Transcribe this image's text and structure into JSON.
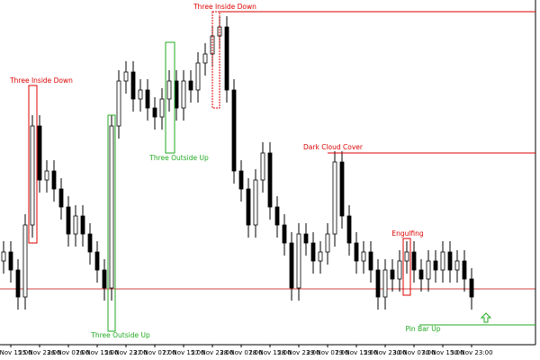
{
  "chart_data": {
    "type": "candlestick",
    "categories": [
      null,
      "25 Nov 15:00",
      null,
      null,
      null,
      "25 Nov 23:00",
      null,
      null,
      null,
      "26 Nov 07:00",
      null,
      null,
      null,
      "26 Nov 15:00",
      null,
      null,
      null,
      "26 Nov 23:00",
      null,
      null,
      null,
      "27 Nov 07:00",
      null,
      null,
      null,
      "27 Nov 15:00",
      null,
      null,
      null,
      "27 Nov 23:00",
      null,
      null,
      null,
      "28 Nov 07:00",
      null,
      null,
      null,
      "28 Nov 15:00",
      null,
      null,
      null,
      "28 Nov 23:00",
      null,
      null,
      null,
      "29 Nov 07:00",
      null,
      null,
      null,
      "29 Nov 15:00",
      null,
      null,
      null,
      "29 Nov 23:00",
      null,
      null,
      null,
      "30 Nov 07:00",
      null,
      null,
      null,
      "30 Nov 15:00",
      null,
      null,
      null,
      "30 Nov 23:00"
    ],
    "open": [
      110,
      120,
      100,
      70,
      150,
      260,
      200,
      210,
      190,
      170,
      140,
      160,
      140,
      120,
      100,
      80,
      260,
      310,
      320,
      290,
      300,
      280,
      270,
      290,
      310,
      280,
      310,
      300,
      330,
      340,
      360,
      370,
      300,
      210,
      190,
      150,
      200,
      230,
      170,
      150,
      130,
      80,
      140,
      130,
      110,
      120,
      140,
      220,
      160,
      130,
      110,
      120,
      100,
      70,
      100,
      90,
      110,
      120,
      100,
      90,
      110,
      100,
      120,
      100,
      110,
      90
    ],
    "high": [
      132,
      132,
      112,
      162,
      272,
      272,
      222,
      222,
      202,
      182,
      172,
      172,
      152,
      132,
      112,
      272,
      322,
      332,
      332,
      312,
      312,
      292,
      302,
      322,
      322,
      322,
      322,
      342,
      352,
      372,
      382,
      382,
      312,
      222,
      202,
      212,
      242,
      242,
      182,
      162,
      142,
      152,
      152,
      142,
      132,
      152,
      232,
      232,
      172,
      142,
      132,
      132,
      112,
      112,
      112,
      122,
      132,
      132,
      112,
      122,
      122,
      132,
      132,
      122,
      122,
      102
    ],
    "low": [
      96,
      86,
      56,
      56,
      136,
      186,
      186,
      176,
      156,
      126,
      126,
      126,
      106,
      86,
      66,
      66,
      246,
      296,
      276,
      276,
      266,
      256,
      256,
      276,
      266,
      266,
      286,
      286,
      316,
      326,
      346,
      286,
      196,
      176,
      136,
      136,
      186,
      156,
      136,
      116,
      66,
      66,
      116,
      96,
      96,
      106,
      126,
      146,
      116,
      96,
      96,
      86,
      56,
      56,
      76,
      76,
      96,
      86,
      76,
      76,
      86,
      86,
      86,
      86,
      76,
      56
    ],
    "close": [
      120,
      100,
      70,
      150,
      260,
      200,
      210,
      190,
      170,
      140,
      160,
      140,
      120,
      100,
      80,
      260,
      310,
      320,
      290,
      300,
      280,
      270,
      290,
      310,
      280,
      310,
      300,
      330,
      340,
      360,
      370,
      300,
      210,
      190,
      150,
      200,
      230,
      170,
      150,
      130,
      80,
      140,
      130,
      110,
      120,
      140,
      220,
      160,
      130,
      110,
      120,
      100,
      70,
      100,
      90,
      110,
      120,
      100,
      90,
      110,
      100,
      120,
      100,
      110,
      90,
      70
    ],
    "ylim": [
      17,
      400
    ],
    "level": {
      "value": 79,
      "color": "#c00000"
    },
    "annotations": [
      "Three Inside Down",
      "Three Outside Up",
      "Three Outside Up",
      "Three Inside Down",
      "Dark Cloud Cover",
      "Engulfing",
      "Pin Bar Up"
    ]
  }
}
